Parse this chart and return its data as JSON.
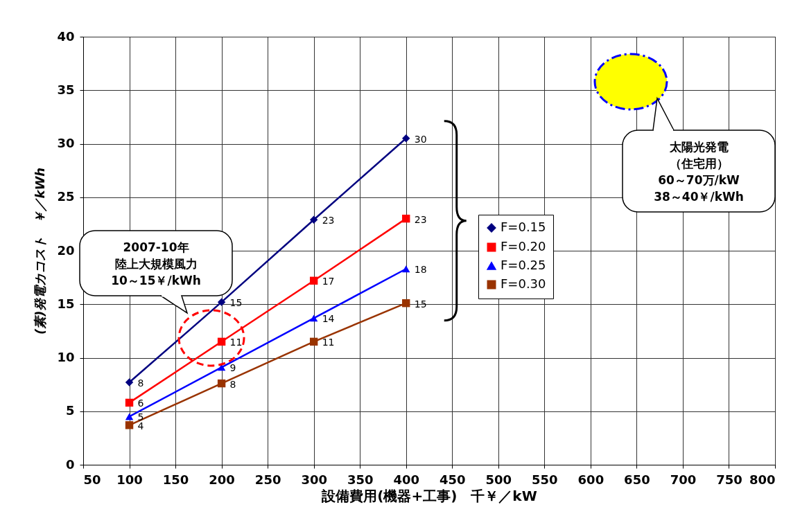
{
  "chart_data": {
    "type": "line",
    "xlabel": "設備費用(機器+工事)　千￥／kW",
    "ylabel": "(素)発電カコスト　￥／kWh",
    "x": [
      100,
      200,
      300,
      400
    ],
    "series": [
      {
        "name": "F=0.15",
        "color": "#000080",
        "marker": "diamond",
        "values": [
          7.7,
          15.2,
          22.9,
          30.5
        ],
        "value_labels": [
          "8",
          "15",
          "23",
          "30"
        ]
      },
      {
        "name": "F=0.20",
        "color": "#ff0000",
        "marker": "square",
        "values": [
          5.8,
          11.5,
          17.2,
          23.0
        ],
        "value_labels": [
          "6",
          "11",
          "17",
          "23"
        ]
      },
      {
        "name": "F=0.25",
        "color": "#0000ff",
        "marker": "triangle",
        "values": [
          4.5,
          9.1,
          13.7,
          18.3
        ],
        "value_labels": [
          "5",
          "9",
          "14",
          "18"
        ]
      },
      {
        "name": "F=0.30",
        "color": "#993300",
        "marker": "square",
        "values": [
          3.7,
          7.6,
          11.5,
          15.1
        ],
        "value_labels": [
          "4",
          "8",
          "11",
          "15"
        ]
      }
    ],
    "xlim": [
      50,
      800
    ],
    "xticks": [
      50,
      100,
      150,
      200,
      250,
      300,
      350,
      400,
      450,
      500,
      550,
      600,
      650,
      700,
      750,
      800
    ],
    "ylim": [
      0,
      40
    ],
    "yticks": [
      0,
      5,
      10,
      15,
      20,
      25,
      30,
      35,
      40
    ],
    "grid": true,
    "legend": "right",
    "annotations": [
      "2007-10年",
      "陸上大規模風力",
      "10～15￥/kWh",
      "太陽光発電",
      "（住宅用）",
      "60～70万/kW",
      "38～40￥/kWh"
    ]
  }
}
